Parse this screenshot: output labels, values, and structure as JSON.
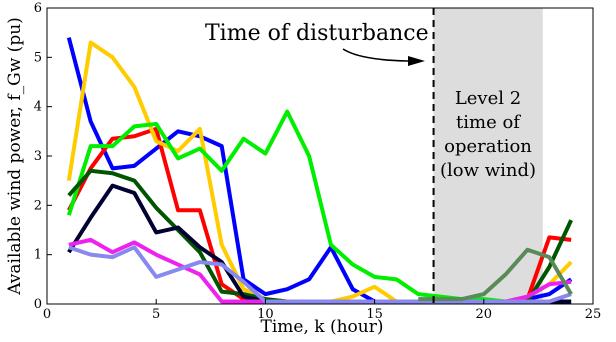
{
  "chart_data": {
    "type": "line",
    "xlabel": "Time, k (hour)",
    "ylabel": "Available wind power, f_Gw (pu)",
    "xlim": [
      0,
      25
    ],
    "ylim": [
      0,
      6
    ],
    "x_ticks": [
      "0",
      "5",
      "10",
      "15",
      "20",
      "25"
    ],
    "y_ticks": [
      "0",
      "1",
      "2",
      "3",
      "4",
      "5",
      "6"
    ],
    "x_tick_values": [
      0,
      5,
      10,
      15,
      20,
      25
    ],
    "y_tick_values": [
      0,
      1,
      2,
      3,
      4,
      5,
      6
    ],
    "grid": false,
    "annotations": {
      "disturbance_label": "Time of disturbance",
      "disturbance_x": 17.7,
      "shaded_region": [
        17.7,
        22.7
      ],
      "shaded_lines": [
        "Level 2",
        "time of",
        "operation",
        "(low wind)"
      ]
    },
    "series": [
      {
        "color": "#0000ff",
        "x": [
          1,
          2,
          3,
          4,
          5,
          6,
          7,
          8,
          9,
          10,
          11,
          12,
          13,
          14,
          15,
          16,
          17,
          18,
          19,
          20,
          21,
          22,
          23,
          24
        ],
        "values": [
          5.4,
          3.7,
          2.75,
          2.8,
          3.15,
          3.5,
          3.4,
          3.2,
          0.5,
          0.2,
          0.3,
          0.5,
          1.15,
          0.3,
          0.05,
          0.05,
          0.05,
          0.05,
          0.05,
          0.05,
          0.05,
          0.1,
          0.2,
          0.5
        ]
      },
      {
        "color": "#ff0000",
        "x": [
          1,
          2,
          3,
          4,
          5,
          6,
          7,
          8,
          9,
          10,
          11,
          12,
          13,
          14,
          15,
          16,
          17,
          18,
          19,
          20,
          21,
          22,
          23,
          24
        ],
        "values": [
          1.9,
          2.75,
          3.35,
          3.4,
          3.55,
          1.9,
          1.9,
          0.4,
          0.1,
          0.05,
          0.05,
          0.05,
          0.05,
          0.05,
          0.05,
          0.05,
          0.05,
          0.05,
          0.05,
          0.05,
          0.05,
          0.1,
          1.35,
          1.3
        ]
      },
      {
        "color": "#ffcc00",
        "x": [
          1,
          2,
          3,
          4,
          5,
          6,
          7,
          8,
          9,
          10,
          11,
          12,
          13,
          14,
          15,
          16,
          17,
          18,
          19,
          20,
          21,
          22,
          23,
          24
        ],
        "values": [
          2.5,
          5.3,
          5.0,
          4.4,
          3.3,
          3.1,
          3.55,
          1.2,
          0.3,
          0.1,
          0.05,
          0.05,
          0.05,
          0.15,
          0.35,
          0.05,
          0.05,
          0.05,
          0.05,
          0.05,
          0.05,
          0.15,
          0.4,
          0.85
        ]
      },
      {
        "color": "#00ee00",
        "x": [
          1,
          2,
          3,
          4,
          5,
          6,
          7,
          8,
          9,
          10,
          11,
          12,
          13,
          14,
          15,
          16,
          17,
          18,
          19,
          20,
          21,
          22,
          23,
          24
        ],
        "values": [
          1.8,
          3.2,
          3.2,
          3.6,
          3.65,
          2.95,
          3.15,
          2.7,
          3.35,
          3.05,
          3.9,
          3.0,
          1.2,
          0.8,
          0.55,
          0.5,
          0.2,
          0.15,
          0.1,
          0.1,
          0.05,
          0.05,
          0.05,
          0.05
        ]
      },
      {
        "color": "#005500",
        "x": [
          1,
          2,
          3,
          4,
          5,
          6,
          7,
          8,
          9,
          10,
          11,
          12,
          13,
          14,
          15,
          16,
          17,
          18,
          19,
          20,
          21,
          22,
          23,
          24
        ],
        "values": [
          2.2,
          2.7,
          2.65,
          2.5,
          1.95,
          1.5,
          1.05,
          0.25,
          0.2,
          0.1,
          0.05,
          0.05,
          0.05,
          0.05,
          0.05,
          0.05,
          0.05,
          0.05,
          0.05,
          0.05,
          0.05,
          0.05,
          0.75,
          1.7
        ]
      },
      {
        "color": "#000033",
        "x": [
          1,
          2,
          3,
          4,
          5,
          6,
          7,
          8,
          9,
          10,
          11,
          12,
          13,
          14,
          15,
          16,
          17,
          18,
          19,
          20,
          21,
          22,
          23,
          24
        ],
        "values": [
          1.05,
          1.75,
          2.4,
          2.25,
          1.45,
          1.55,
          1.15,
          0.85,
          0.15,
          0.05,
          0.05,
          0.05,
          0.05,
          0.05,
          0.05,
          0.05,
          0.05,
          0.05,
          0.05,
          0.05,
          0.05,
          0.05,
          0.05,
          0.05
        ]
      },
      {
        "color": "#ee22ee",
        "x": [
          1,
          2,
          3,
          4,
          5,
          6,
          7,
          8,
          9,
          10,
          11,
          12,
          13,
          14,
          15,
          16,
          17,
          18,
          19,
          20,
          21,
          22,
          23,
          24
        ],
        "values": [
          1.2,
          1.3,
          1.05,
          1.25,
          1.0,
          0.8,
          0.6,
          0.05,
          0.05,
          0.05,
          0.05,
          0.05,
          0.05,
          0.05,
          0.05,
          0.05,
          0.05,
          0.05,
          0.05,
          0.05,
          0.05,
          0.15,
          0.4,
          0.45
        ]
      },
      {
        "color": "#8888ee",
        "x": [
          1,
          2,
          3,
          4,
          5,
          6,
          7,
          8,
          9,
          10,
          11,
          12,
          13,
          14,
          15,
          16,
          17,
          18,
          19,
          20,
          21,
          22,
          23,
          24
        ],
        "values": [
          1.15,
          1.0,
          0.95,
          1.15,
          0.55,
          0.7,
          0.85,
          0.8,
          0.45,
          0.05,
          0.05,
          0.05,
          0.05,
          0.05,
          0.05,
          0.05,
          0.05,
          0.05,
          0.05,
          0.05,
          0.05,
          0.05,
          0.05,
          0.2
        ]
      },
      {
        "color": "#5a8a5a",
        "x": [
          17,
          18,
          19,
          20,
          21,
          22,
          23,
          24
        ],
        "values": [
          0.1,
          0.1,
          0.1,
          0.2,
          0.6,
          1.1,
          0.95,
          0.2
        ]
      }
    ]
  }
}
